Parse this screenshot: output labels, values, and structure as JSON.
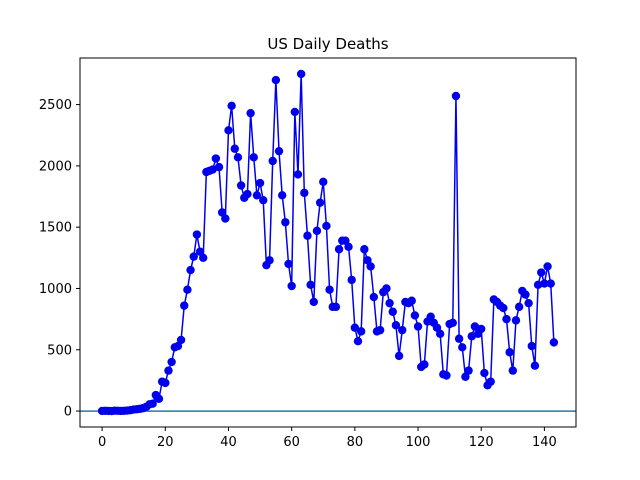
{
  "chart_data": {
    "type": "line",
    "title": "US Daily Deaths",
    "xlabel": "",
    "ylabel": "",
    "xlim": [
      -7,
      150
    ],
    "ylim": [
      -130,
      2880
    ],
    "x_ticks": [
      0,
      20,
      40,
      60,
      80,
      100,
      120,
      140
    ],
    "y_ticks": [
      0,
      500,
      1000,
      1500,
      2000,
      2500
    ],
    "grid": false,
    "legend": "none",
    "colors": {
      "series": "#0000ee",
      "baseline": "#1f77b4",
      "axes": "#000000"
    },
    "baseline_y": 0,
    "series": [
      {
        "marker": "circle",
        "x": [
          0,
          1,
          2,
          3,
          4,
          5,
          6,
          7,
          8,
          9,
          10,
          11,
          12,
          13,
          14,
          15,
          16,
          17,
          18,
          19,
          20,
          21,
          22,
          23,
          24,
          25,
          26,
          27,
          28,
          29,
          30,
          31,
          32,
          33,
          34,
          35,
          36,
          37,
          38,
          39,
          40,
          41,
          42,
          43,
          44,
          45,
          46,
          47,
          48,
          49,
          50,
          51,
          52,
          53,
          54,
          55,
          56,
          57,
          58,
          59,
          60,
          61,
          62,
          63,
          64,
          65,
          66,
          67,
          68,
          69,
          70,
          71,
          72,
          73,
          74,
          75,
          76,
          77,
          78,
          79,
          80,
          81,
          82,
          83,
          84,
          85,
          86,
          87,
          88,
          89,
          90,
          91,
          92,
          93,
          94,
          95,
          96,
          97,
          98,
          99,
          100,
          101,
          102,
          103,
          104,
          105,
          106,
          107,
          108,
          109,
          110,
          111,
          112,
          113,
          114,
          115,
          116,
          117,
          118,
          119,
          120,
          121,
          122,
          123,
          124,
          125,
          126,
          127,
          128,
          129,
          130,
          131,
          132,
          133,
          134,
          135,
          136,
          137,
          138,
          139,
          140,
          141,
          142,
          143
        ],
        "values": [
          1,
          2,
          1,
          0,
          3,
          2,
          1,
          2,
          4,
          7,
          12,
          15,
          18,
          24,
          35,
          55,
          60,
          130,
          100,
          240,
          230,
          330,
          400,
          520,
          530,
          580,
          860,
          990,
          1150,
          1260,
          1440,
          1300,
          1250,
          1950,
          1960,
          1970,
          2060,
          1990,
          1620,
          1570,
          2290,
          2490,
          2140,
          2070,
          1840,
          1740,
          1770,
          2430,
          2070,
          1760,
          1860,
          1720,
          1190,
          1230,
          2040,
          2700,
          2120,
          1760,
          1540,
          1200,
          1020,
          2440,
          1930,
          2750,
          1780,
          1430,
          1030,
          890,
          1470,
          1700,
          1870,
          1510,
          990,
          850,
          850,
          1320,
          1390,
          1390,
          1340,
          1070,
          680,
          570,
          650,
          1320,
          1230,
          1180,
          930,
          650,
          660,
          970,
          1000,
          880,
          810,
          700,
          450,
          660,
          890,
          880,
          900,
          780,
          690,
          360,
          380,
          730,
          770,
          720,
          680,
          630,
          300,
          290,
          710,
          720,
          2570,
          590,
          520,
          280,
          330,
          610,
          690,
          630,
          670,
          310,
          210,
          240,
          910,
          890,
          860,
          840,
          750,
          480,
          330,
          740,
          850,
          980,
          950,
          880,
          530,
          370,
          1030,
          1130,
          1040,
          1180,
          1040,
          560
        ]
      }
    ]
  }
}
